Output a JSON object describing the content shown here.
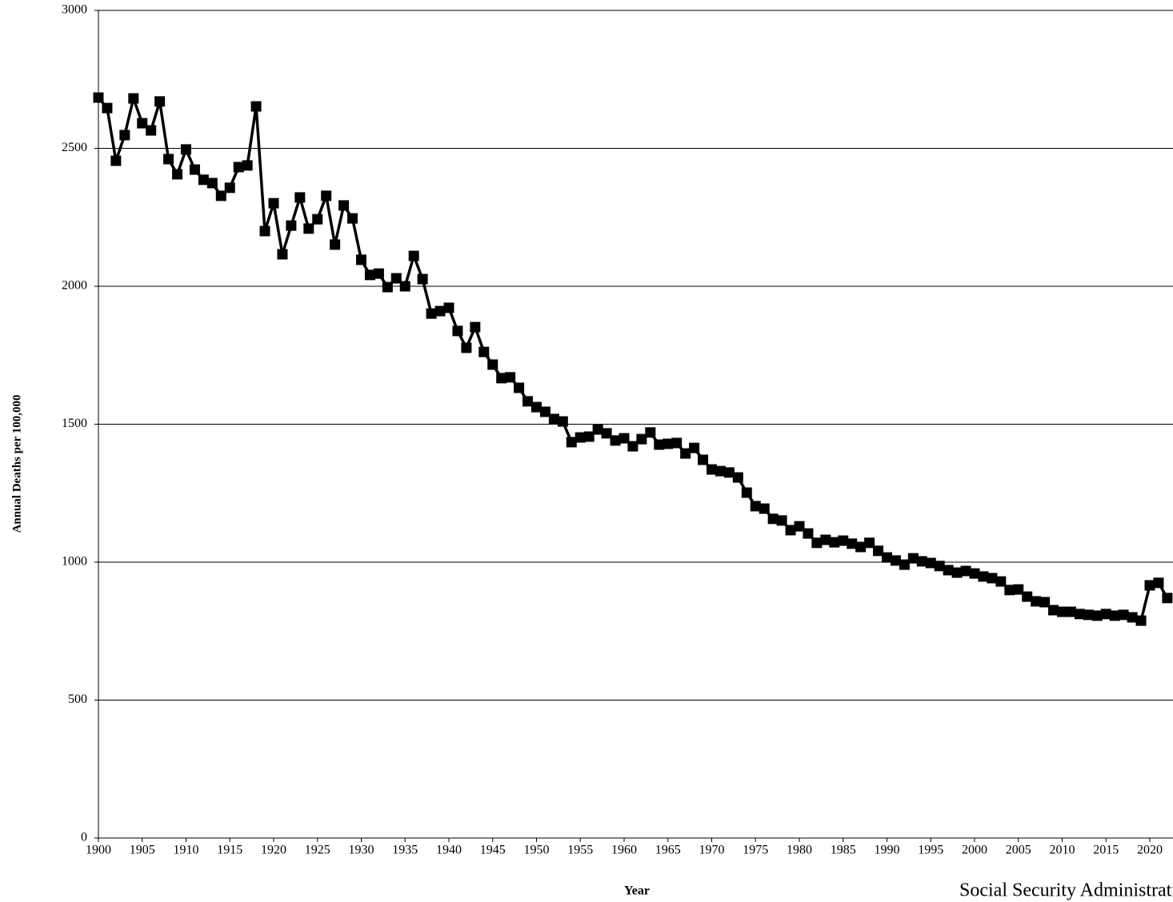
{
  "chart_data": {
    "type": "line",
    "y_label": "Annual Deaths per 100,000",
    "x_label": "Year",
    "annotation": "Social Security Administration",
    "x": [
      1900,
      1901,
      1902,
      1903,
      1904,
      1905,
      1906,
      1907,
      1908,
      1909,
      1910,
      1911,
      1912,
      1913,
      1914,
      1915,
      1916,
      1917,
      1918,
      1919,
      1920,
      1921,
      1922,
      1923,
      1924,
      1925,
      1926,
      1927,
      1928,
      1929,
      1930,
      1931,
      1932,
      1933,
      1934,
      1935,
      1936,
      1937,
      1938,
      1939,
      1940,
      1941,
      1942,
      1943,
      1944,
      1945,
      1946,
      1947,
      1948,
      1949,
      1950,
      1951,
      1952,
      1953,
      1954,
      1955,
      1956,
      1957,
      1958,
      1959,
      1960,
      1961,
      1962,
      1963,
      1964,
      1965,
      1966,
      1967,
      1968,
      1969,
      1970,
      1971,
      1972,
      1973,
      1974,
      1975,
      1976,
      1977,
      1978,
      1979,
      1980,
      1981,
      1982,
      1983,
      1984,
      1985,
      1986,
      1987,
      1988,
      1989,
      1990,
      1991,
      1992,
      1993,
      1994,
      1995,
      1996,
      1997,
      1998,
      1999,
      2000,
      2001,
      2002,
      2003,
      2004,
      2005,
      2006,
      2007,
      2008,
      2009,
      2010,
      2011,
      2012,
      2013,
      2014,
      2015,
      2016,
      2017,
      2018,
      2019,
      2020,
      2021,
      2022
    ],
    "values": [
      2684,
      2646,
      2455,
      2548,
      2681,
      2591,
      2565,
      2670,
      2461,
      2406,
      2496,
      2423,
      2386,
      2374,
      2328,
      2357,
      2432,
      2438,
      2652,
      2200,
      2301,
      2116,
      2220,
      2322,
      2209,
      2243,
      2328,
      2151,
      2293,
      2246,
      2096,
      2041,
      2046,
      1997,
      2029,
      2000,
      2110,
      2026,
      1901,
      1910,
      1922,
      1838,
      1777,
      1852,
      1762,
      1716,
      1667,
      1670,
      1632,
      1583,
      1562,
      1545,
      1519,
      1510,
      1435,
      1452,
      1455,
      1481,
      1467,
      1441,
      1449,
      1420,
      1446,
      1470,
      1426,
      1429,
      1432,
      1394,
      1414,
      1371,
      1336,
      1330,
      1325,
      1307,
      1252,
      1203,
      1194,
      1157,
      1151,
      1116,
      1130,
      1104,
      1070,
      1081,
      1072,
      1078,
      1067,
      1055,
      1070,
      1041,
      1017,
      1006,
      991,
      1014,
      1003,
      997,
      986,
      971,
      962,
      968,
      959,
      948,
      942,
      930,
      899,
      901,
      875,
      858,
      855,
      826,
      820,
      820,
      812,
      809,
      806,
      812,
      806,
      809,
      800,
      788,
      916,
      925,
      870
    ],
    "color": "#000000",
    "xlim": [
      1900,
      2022.65
    ],
    "xticks": [
      1900,
      1905,
      1910,
      1915,
      1920,
      1925,
      1930,
      1935,
      1940,
      1945,
      1950,
      1955,
      1960,
      1965,
      1970,
      1975,
      1980,
      1985,
      1990,
      1995,
      2000,
      2005,
      2010,
      2015,
      2020
    ],
    "ylim": [
      0,
      3000
    ],
    "yticks": [
      0,
      500,
      1000,
      1500,
      2000,
      2500,
      3000
    ],
    "grid": true
  }
}
